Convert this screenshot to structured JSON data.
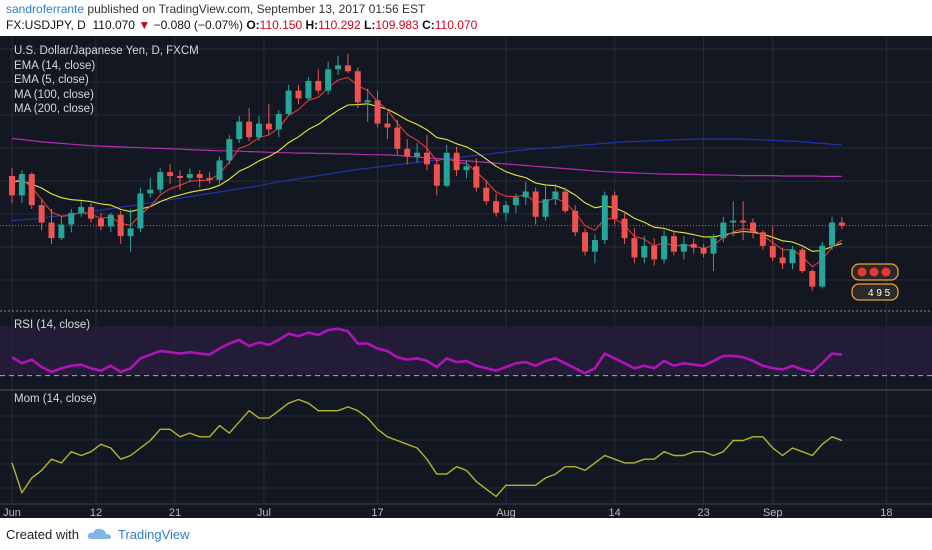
{
  "header": {
    "author": "sandroferrante",
    "published_text": "published on TradingView.com, September 13, 2017 01:56 EST",
    "symbol": "FX:USDJPY, D",
    "last": "110.070",
    "change_arrow": "▼",
    "change": "−0.080 (−0.07%)",
    "o_label": "O:",
    "o_value": "110.150",
    "h_label": "H:",
    "h_value": "110.292",
    "l_label": "L:",
    "l_value": "109.983",
    "c_label": "C:",
    "c_value": "110.070"
  },
  "legend": {
    "title": "U.S. Dollar/Japanese Yen, D, FXCM",
    "ema14": "EMA (14, close)",
    "ema5": "EMA (5, close)",
    "ma100": "MA (100, close)",
    "ma200": "MA (200, close)",
    "rsi": "RSI (14, close)",
    "mom": "Mom (14, close)"
  },
  "badge": {
    "numbers": "4 9 5"
  },
  "footer": {
    "created": "Created with",
    "brand": "TradingView"
  },
  "colors": {
    "background": "#131722",
    "up": "#26a69a",
    "down": "#ef5350",
    "ema14": "#e8e83a",
    "ema5": "#e53935",
    "ma100": "#2233a8",
    "ma200": "#b02fb0",
    "rsi": "#b013b8",
    "mom": "#b5b52c"
  },
  "chart_data": {
    "type": "candlestick",
    "symbol": "FX:USDJPY",
    "timeframe": "D",
    "x_tick_labels": [
      "Jun",
      "12",
      "21",
      "Jul",
      "17",
      "Aug",
      "14",
      "23",
      "Sep",
      "18"
    ],
    "price_range": [
      108.0,
      114.7
    ],
    "candles": [
      {
        "o": 111.35,
        "h": 111.55,
        "l": 110.65,
        "c": 110.85
      },
      {
        "o": 110.85,
        "h": 111.5,
        "l": 110.65,
        "c": 111.4
      },
      {
        "o": 111.4,
        "h": 111.45,
        "l": 110.5,
        "c": 110.6
      },
      {
        "o": 110.6,
        "h": 110.75,
        "l": 109.95,
        "c": 110.15
      },
      {
        "o": 110.15,
        "h": 110.5,
        "l": 109.6,
        "c": 109.75
      },
      {
        "o": 109.75,
        "h": 110.3,
        "l": 109.7,
        "c": 110.1
      },
      {
        "o": 110.1,
        "h": 110.5,
        "l": 109.9,
        "c": 110.4
      },
      {
        "o": 110.4,
        "h": 110.7,
        "l": 110.3,
        "c": 110.55
      },
      {
        "o": 110.55,
        "h": 110.65,
        "l": 110.15,
        "c": 110.25
      },
      {
        "o": 110.25,
        "h": 110.4,
        "l": 109.95,
        "c": 110.05
      },
      {
        "o": 110.05,
        "h": 110.4,
        "l": 109.9,
        "c": 110.35
      },
      {
        "o": 110.35,
        "h": 110.45,
        "l": 109.6,
        "c": 109.8
      },
      {
        "o": 109.8,
        "h": 110.5,
        "l": 109.4,
        "c": 110.0
      },
      {
        "o": 110.0,
        "h": 111.05,
        "l": 109.9,
        "c": 110.9
      },
      {
        "o": 110.9,
        "h": 111.3,
        "l": 110.8,
        "c": 111.0
      },
      {
        "o": 111.0,
        "h": 111.55,
        "l": 110.9,
        "c": 111.45
      },
      {
        "o": 111.45,
        "h": 111.65,
        "l": 111.15,
        "c": 111.35
      },
      {
        "o": 111.35,
        "h": 111.5,
        "l": 111.0,
        "c": 111.3
      },
      {
        "o": 111.3,
        "h": 111.55,
        "l": 111.2,
        "c": 111.4
      },
      {
        "o": 111.4,
        "h": 111.5,
        "l": 111.05,
        "c": 111.3
      },
      {
        "o": 111.3,
        "h": 111.45,
        "l": 111.15,
        "c": 111.25
      },
      {
        "o": 111.25,
        "h": 111.85,
        "l": 111.15,
        "c": 111.75
      },
      {
        "o": 111.75,
        "h": 112.4,
        "l": 111.65,
        "c": 112.3
      },
      {
        "o": 112.3,
        "h": 112.9,
        "l": 112.2,
        "c": 112.75
      },
      {
        "o": 112.75,
        "h": 113.1,
        "l": 112.25,
        "c": 112.35
      },
      {
        "o": 112.35,
        "h": 112.9,
        "l": 112.25,
        "c": 112.7
      },
      {
        "o": 112.7,
        "h": 113.2,
        "l": 112.4,
        "c": 112.55
      },
      {
        "o": 112.55,
        "h": 113.05,
        "l": 112.35,
        "c": 112.95
      },
      {
        "o": 112.95,
        "h": 113.7,
        "l": 112.9,
        "c": 113.55
      },
      {
        "o": 113.55,
        "h": 113.7,
        "l": 113.2,
        "c": 113.35
      },
      {
        "o": 113.35,
        "h": 113.9,
        "l": 113.3,
        "c": 113.8
      },
      {
        "o": 113.8,
        "h": 114.1,
        "l": 113.45,
        "c": 113.55
      },
      {
        "o": 113.55,
        "h": 114.3,
        "l": 113.45,
        "c": 114.1
      },
      {
        "o": 114.1,
        "h": 114.45,
        "l": 113.95,
        "c": 114.2
      },
      {
        "o": 114.2,
        "h": 114.5,
        "l": 114.0,
        "c": 114.05
      },
      {
        "o": 114.05,
        "h": 114.15,
        "l": 113.1,
        "c": 113.25
      },
      {
        "o": 113.25,
        "h": 113.6,
        "l": 112.75,
        "c": 113.3
      },
      {
        "o": 113.3,
        "h": 113.55,
        "l": 112.6,
        "c": 112.7
      },
      {
        "o": 112.7,
        "h": 113.0,
        "l": 112.3,
        "c": 112.6
      },
      {
        "o": 112.6,
        "h": 112.8,
        "l": 111.9,
        "c": 112.05
      },
      {
        "o": 112.05,
        "h": 112.3,
        "l": 111.65,
        "c": 111.85
      },
      {
        "o": 111.85,
        "h": 112.2,
        "l": 111.7,
        "c": 111.95
      },
      {
        "o": 111.95,
        "h": 112.4,
        "l": 111.5,
        "c": 111.65
      },
      {
        "o": 111.65,
        "h": 111.75,
        "l": 110.85,
        "c": 111.1
      },
      {
        "o": 111.1,
        "h": 112.15,
        "l": 111.05,
        "c": 111.95
      },
      {
        "o": 111.95,
        "h": 112.1,
        "l": 111.35,
        "c": 111.5
      },
      {
        "o": 111.5,
        "h": 111.75,
        "l": 111.3,
        "c": 111.6
      },
      {
        "o": 111.6,
        "h": 111.8,
        "l": 110.95,
        "c": 111.05
      },
      {
        "o": 111.05,
        "h": 111.25,
        "l": 110.6,
        "c": 110.7
      },
      {
        "o": 110.7,
        "h": 110.9,
        "l": 110.3,
        "c": 110.4
      },
      {
        "o": 110.4,
        "h": 110.7,
        "l": 110.2,
        "c": 110.6
      },
      {
        "o": 110.6,
        "h": 110.9,
        "l": 110.4,
        "c": 110.8
      },
      {
        "o": 110.8,
        "h": 111.2,
        "l": 110.6,
        "c": 110.95
      },
      {
        "o": 110.95,
        "h": 111.05,
        "l": 110.1,
        "c": 110.3
      },
      {
        "o": 110.3,
        "h": 111.1,
        "l": 110.2,
        "c": 110.75
      },
      {
        "o": 110.75,
        "h": 111.15,
        "l": 110.6,
        "c": 110.95
      },
      {
        "o": 110.95,
        "h": 111.05,
        "l": 110.4,
        "c": 110.45
      },
      {
        "o": 110.45,
        "h": 110.6,
        "l": 109.8,
        "c": 109.9
      },
      {
        "o": 109.9,
        "h": 110.0,
        "l": 109.3,
        "c": 109.4
      },
      {
        "o": 109.4,
        "h": 109.85,
        "l": 109.1,
        "c": 109.7
      },
      {
        "o": 109.7,
        "h": 110.95,
        "l": 109.6,
        "c": 110.85
      },
      {
        "o": 110.85,
        "h": 110.95,
        "l": 110.1,
        "c": 110.25
      },
      {
        "o": 110.25,
        "h": 110.45,
        "l": 109.6,
        "c": 109.75
      },
      {
        "o": 109.75,
        "h": 110.0,
        "l": 109.1,
        "c": 109.25
      },
      {
        "o": 109.25,
        "h": 109.8,
        "l": 109.1,
        "c": 109.55
      },
      {
        "o": 109.55,
        "h": 109.75,
        "l": 109.05,
        "c": 109.2
      },
      {
        "o": 109.2,
        "h": 109.95,
        "l": 109.1,
        "c": 109.8
      },
      {
        "o": 109.8,
        "h": 109.95,
        "l": 109.3,
        "c": 109.4
      },
      {
        "o": 109.4,
        "h": 109.8,
        "l": 109.2,
        "c": 109.6
      },
      {
        "o": 109.6,
        "h": 109.75,
        "l": 109.35,
        "c": 109.5
      },
      {
        "o": 109.5,
        "h": 109.6,
        "l": 109.25,
        "c": 109.35
      },
      {
        "o": 109.35,
        "h": 109.85,
        "l": 108.9,
        "c": 109.75
      },
      {
        "o": 109.75,
        "h": 110.3,
        "l": 109.65,
        "c": 110.15
      },
      {
        "o": 110.15,
        "h": 110.7,
        "l": 109.8,
        "c": 110.2
      },
      {
        "o": 110.2,
        "h": 110.7,
        "l": 109.7,
        "c": 110.15
      },
      {
        "o": 110.15,
        "h": 110.25,
        "l": 109.75,
        "c": 109.9
      },
      {
        "o": 109.9,
        "h": 109.95,
        "l": 109.45,
        "c": 109.55
      },
      {
        "o": 109.55,
        "h": 110.05,
        "l": 109.15,
        "c": 109.25
      },
      {
        "o": 109.25,
        "h": 109.5,
        "l": 108.95,
        "c": 109.1
      },
      {
        "o": 109.1,
        "h": 109.55,
        "l": 108.95,
        "c": 109.45
      },
      {
        "o": 109.45,
        "h": 109.5,
        "l": 108.85,
        "c": 108.9
      },
      {
        "o": 108.9,
        "h": 108.95,
        "l": 108.4,
        "c": 108.5
      },
      {
        "o": 108.5,
        "h": 109.65,
        "l": 108.45,
        "c": 109.55
      },
      {
        "o": 109.55,
        "h": 110.3,
        "l": 109.45,
        "c": 110.15
      },
      {
        "o": 110.15,
        "h": 110.29,
        "l": 109.98,
        "c": 110.07
      }
    ],
    "ema14": [
      111.2,
      111.22,
      111.14,
      111.04,
      110.89,
      110.79,
      110.74,
      110.72,
      110.69,
      110.63,
      110.6,
      110.49,
      110.43,
      110.5,
      110.56,
      110.69,
      110.79,
      110.86,
      110.93,
      110.98,
      111.02,
      111.11,
      111.27,
      111.47,
      111.59,
      111.74,
      111.85,
      112.0,
      112.21,
      112.36,
      112.55,
      112.68,
      112.87,
      113.04,
      113.18,
      113.19,
      113.21,
      113.14,
      113.07,
      112.94,
      112.79,
      112.68,
      112.54,
      112.34,
      112.29,
      112.18,
      112.1,
      111.96,
      111.79,
      111.6,
      111.46,
      111.37,
      111.31,
      111.17,
      111.12,
      111.1,
      111.01,
      110.86,
      110.66,
      110.53,
      110.58,
      110.53,
      110.42,
      110.26,
      110.16,
      110.03,
      110.0,
      109.92,
      109.89,
      109.84,
      109.78,
      109.78,
      109.83,
      109.88,
      109.92,
      109.9,
      109.85,
      109.77,
      109.68,
      109.65,
      109.55,
      109.41,
      109.43,
      109.53,
      109.61
    ],
    "ema5": [
      111.2,
      111.27,
      111.05,
      110.75,
      110.42,
      110.31,
      110.34,
      110.41,
      110.36,
      110.26,
      110.29,
      110.13,
      110.08,
      110.35,
      110.57,
      110.86,
      111.02,
      111.11,
      111.21,
      111.24,
      111.24,
      111.41,
      111.71,
      112.06,
      112.16,
      112.34,
      112.41,
      112.59,
      112.91,
      113.06,
      113.3,
      113.38,
      113.62,
      113.82,
      113.89,
      113.68,
      113.55,
      113.27,
      113.05,
      112.71,
      112.42,
      112.27,
      112.06,
      111.74,
      111.81,
      111.7,
      111.67,
      111.46,
      111.21,
      110.94,
      110.83,
      110.82,
      110.86,
      110.67,
      110.7,
      110.78,
      110.67,
      110.41,
      110.07,
      109.95,
      110.25,
      110.25,
      110.08,
      109.8,
      109.72,
      109.55,
      109.63,
      109.55,
      109.57,
      109.55,
      109.48,
      109.57,
      109.77,
      109.91,
      109.99,
      109.96,
      109.82,
      109.63,
      109.45,
      109.45,
      109.27,
      109.01,
      109.19,
      109.51,
      109.7
    ],
    "ma100": [
      110.2,
      110.22,
      110.24,
      110.27,
      110.3,
      110.33,
      110.36,
      110.4,
      110.44,
      110.47,
      110.51,
      110.55,
      110.58,
      110.62,
      110.66,
      110.7,
      110.74,
      110.78,
      110.82,
      110.86,
      110.9,
      110.94,
      110.98,
      111.02,
      111.06,
      111.1,
      111.15,
      111.2,
      111.24,
      111.28,
      111.32,
      111.36,
      111.4,
      111.44,
      111.48,
      111.52,
      111.55,
      111.58,
      111.61,
      111.64,
      111.67,
      111.7,
      111.73,
      111.76,
      111.79,
      111.82,
      111.85,
      111.88,
      111.91,
      111.94,
      111.97,
      112.0,
      112.03,
      112.05,
      112.07,
      112.09,
      112.11,
      112.13,
      112.15,
      112.17,
      112.19,
      112.21,
      112.23,
      112.24,
      112.25,
      112.26,
      112.27,
      112.28,
      112.29,
      112.3,
      112.3,
      112.3,
      112.3,
      112.3,
      112.3,
      112.29,
      112.28,
      112.27,
      112.26,
      112.25,
      112.23,
      112.21,
      112.19,
      112.17,
      112.15
    ],
    "ma200": [
      112.32,
      112.29,
      112.26,
      112.23,
      112.21,
      112.19,
      112.17,
      112.15,
      112.13,
      112.12,
      112.11,
      112.1,
      112.09,
      112.08,
      112.07,
      112.06,
      112.05,
      112.04,
      112.03,
      112.02,
      112.01,
      112.0,
      112.0,
      111.99,
      111.98,
      111.97,
      111.96,
      111.95,
      111.95,
      111.94,
      111.94,
      111.93,
      111.93,
      111.92,
      111.92,
      111.91,
      111.9,
      111.9,
      111.89,
      111.88,
      111.86,
      111.84,
      111.82,
      111.8,
      111.78,
      111.76,
      111.74,
      111.72,
      111.7,
      111.68,
      111.66,
      111.64,
      111.62,
      111.6,
      111.58,
      111.56,
      111.54,
      111.52,
      111.5,
      111.48,
      111.46,
      111.45,
      111.44,
      111.43,
      111.42,
      111.41,
      111.4,
      111.4,
      111.39,
      111.39,
      111.38,
      111.38,
      111.37,
      111.37,
      111.36,
      111.36,
      111.36,
      111.36,
      111.35,
      111.35,
      111.35,
      111.35,
      111.34,
      111.34,
      111.34
    ],
    "rsi": [
      45,
      40,
      43,
      37,
      33,
      36,
      38,
      39,
      36,
      34,
      38,
      33,
      36,
      44,
      47,
      50,
      49,
      48,
      49,
      48,
      47,
      52,
      56,
      59,
      54,
      57,
      55,
      59,
      64,
      62,
      65,
      63,
      67,
      68,
      66,
      56,
      56,
      52,
      50,
      45,
      43,
      44,
      42,
      37,
      44,
      41,
      42,
      38,
      36,
      34,
      37,
      40,
      41,
      38,
      42,
      44,
      40,
      36,
      32,
      36,
      48,
      44,
      40,
      36,
      38,
      36,
      42,
      38,
      40,
      39,
      38,
      42,
      46,
      46,
      45,
      42,
      38,
      36,
      35,
      38,
      35,
      33,
      40,
      48,
      47
    ],
    "rsi_range": [
      20,
      80
    ],
    "mom": [
      -1.2,
      -2.0,
      -1.6,
      -1.4,
      -1.1,
      -1.2,
      -0.9,
      -1.0,
      -0.9,
      -0.7,
      -0.8,
      -1.1,
      -1.0,
      -0.8,
      -0.6,
      -0.3,
      -0.3,
      -0.5,
      -0.4,
      -0.5,
      -0.5,
      -0.2,
      -0.4,
      -0.1,
      0.2,
      0.0,
      0.0,
      0.2,
      0.4,
      0.5,
      0.4,
      0.2,
      0.2,
      0.2,
      0.3,
      0.2,
      0.0,
      -0.3,
      -0.5,
      -0.6,
      -0.7,
      -0.8,
      -1.1,
      -1.5,
      -1.5,
      -1.3,
      -1.4,
      -1.7,
      -1.9,
      -2.1,
      -1.8,
      -1.8,
      -1.8,
      -1.8,
      -1.6,
      -1.5,
      -1.3,
      -1.3,
      -1.4,
      -1.2,
      -1.0,
      -1.1,
      -1.2,
      -1.2,
      -1.1,
      -1.1,
      -0.9,
      -1.0,
      -1.0,
      -0.9,
      -0.9,
      -1.0,
      -0.9,
      -0.6,
      -0.6,
      -0.5,
      -0.5,
      -0.8,
      -1.0,
      -0.8,
      -0.9,
      -1.0,
      -0.7,
      -0.5,
      -0.6
    ]
  }
}
